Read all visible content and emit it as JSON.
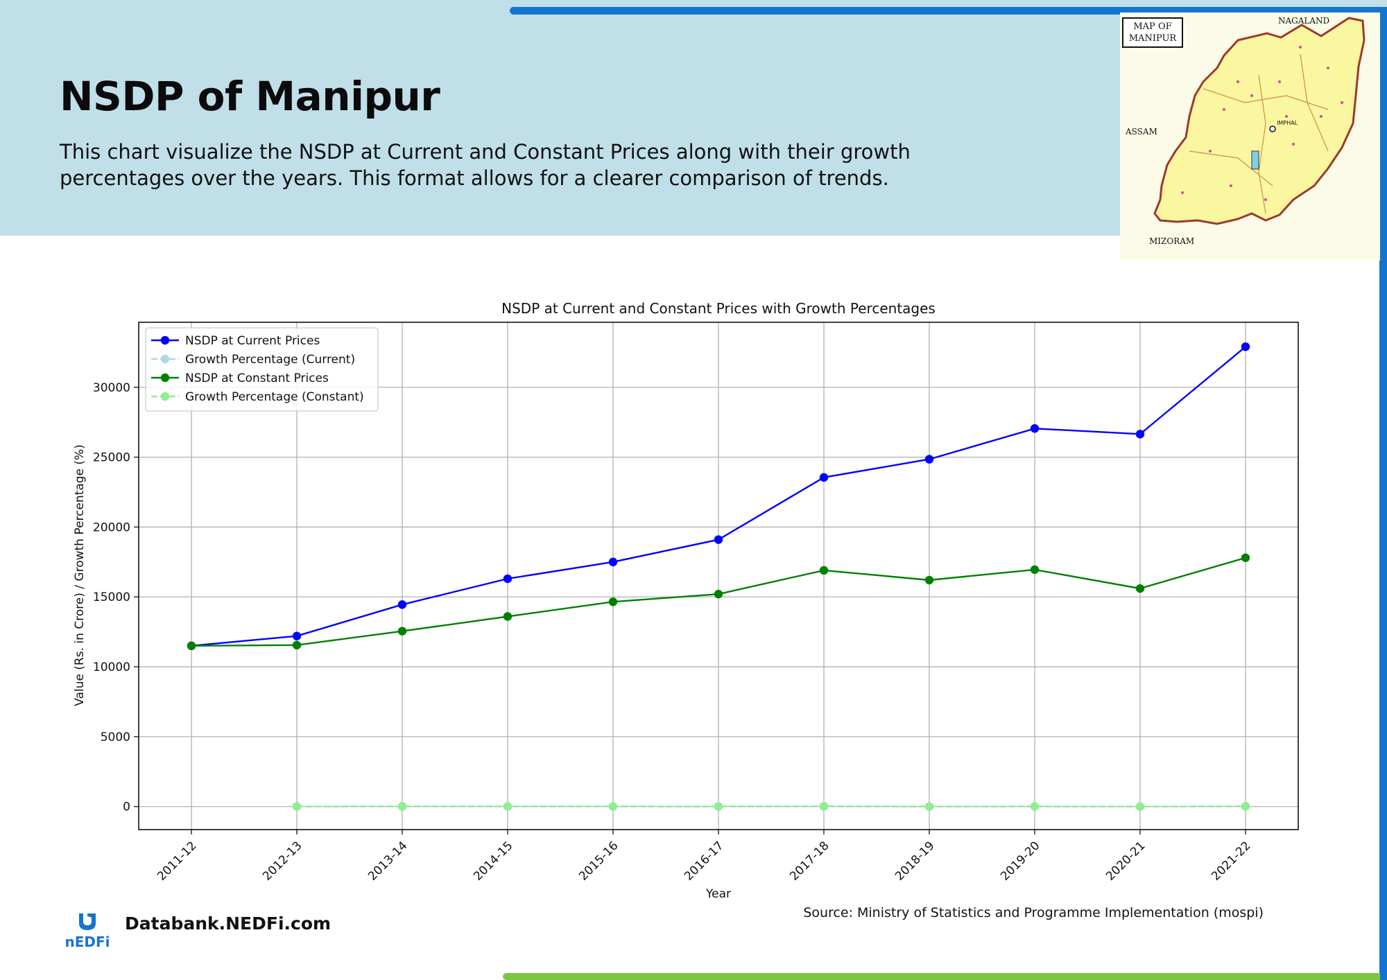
{
  "header": {
    "title": "NSDP of Manipur",
    "description": "This chart visualize the NSDP at Current and Constant Prices along with their growth percentages over the years. This format allows for a clearer comparison of trends."
  },
  "map": {
    "title_line1": "MAP OF",
    "title_line2": "MANIPUR",
    "neighbors": [
      "NAGALAND",
      "ASSAM",
      "MIZORAM"
    ],
    "capital": "IMPHAL",
    "fill_color": "#fbf6a0",
    "border_color": "#9b3a2a"
  },
  "chart_data": {
    "type": "line",
    "title": "NSDP at Current and Constant Prices with Growth Percentages",
    "xlabel": "Year",
    "ylabel": "Value (Rs. in Crore) / Growth Percentage (%)",
    "categories": [
      "2011-12",
      "2012-13",
      "2013-14",
      "2014-15",
      "2015-16",
      "2016-17",
      "2017-18",
      "2018-19",
      "2019-20",
      "2020-21",
      "2021-22"
    ],
    "yticks": [
      0,
      5000,
      10000,
      15000,
      20000,
      25000,
      30000
    ],
    "ylim": [
      -1650,
      34650
    ],
    "grid": true,
    "legend_position": "upper-left",
    "series": [
      {
        "name": "NSDP at Current Prices",
        "color": "#0000ff",
        "dashed": false,
        "values": [
          11500,
          12200,
          14450,
          16300,
          17500,
          19100,
          23550,
          24850,
          27050,
          26650,
          32900
        ]
      },
      {
        "name": "Growth Percentage (Current)",
        "color": "#add8e6",
        "dashed": true,
        "values": [
          null,
          6.1,
          18.4,
          12.8,
          7.4,
          9.1,
          23.3,
          5.5,
          8.9,
          -1.5,
          23.5
        ]
      },
      {
        "name": "NSDP at Constant Prices",
        "color": "#008000",
        "dashed": false,
        "values": [
          11500,
          11550,
          12550,
          13600,
          14650,
          15200,
          16900,
          16200,
          16950,
          15600,
          17800
        ]
      },
      {
        "name": "Growth Percentage (Constant)",
        "color": "#90ee90",
        "dashed": true,
        "values": [
          null,
          0.4,
          8.7,
          8.4,
          7.7,
          3.8,
          11.2,
          -4.1,
          4.6,
          -8.0,
          14.1
        ]
      }
    ]
  },
  "footer": {
    "brand": "Databank.NEDFi.com",
    "source": "Source: Ministry of Statistics and Programme Implementation (mospi)",
    "logo_text": "nEDFi"
  },
  "colors": {
    "header_bg": "#c0dfe9",
    "accent_blue": "#1475d0",
    "accent_green": "#7dc642"
  }
}
